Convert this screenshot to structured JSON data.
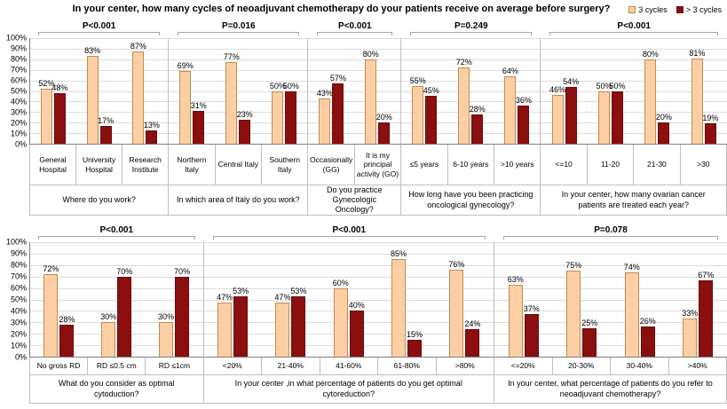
{
  "chart_data": {
    "type": "bar",
    "title": "In your center, how many cycles of neoadjuvant chemotherapy do your patients receive on average before surgery?",
    "ylim": [
      0,
      100
    ],
    "yticks": [
      0,
      10,
      20,
      30,
      40,
      50,
      60,
      70,
      80,
      90,
      100
    ],
    "legend_position": "top-right",
    "grid": true,
    "series": [
      {
        "name": "3 cycles",
        "fill": "#fbcfa3",
        "stroke": "#c28a52"
      },
      {
        "name": "> 3 cycles",
        "fill": "#8b0f0f",
        "stroke": "#6d0b0b"
      }
    ],
    "rows": [
      {
        "panels": [
          {
            "p_value": "P<0.001",
            "question": "Where do you work?",
            "categories": [
              "General Hospital",
              "University Hospital",
              "Research Institute"
            ],
            "values": [
              [
                52,
                83,
                87
              ],
              [
                48,
                17,
                13
              ]
            ]
          },
          {
            "p_value": "P=0.016",
            "question": "In which area of Italy do you work?",
            "categories": [
              "Northern Italy",
              "Central Italy",
              "Southern Italy"
            ],
            "values": [
              [
                69,
                77,
                50
              ],
              [
                31,
                23,
                50
              ]
            ]
          },
          {
            "p_value": "P<0.001",
            "question": "Do you practice Gynecologic Oncology?",
            "categories": [
              "Occasionally (GG)",
              "It is my principal activity (GO)"
            ],
            "values": [
              [
                43,
                80
              ],
              [
                57,
                20
              ]
            ]
          },
          {
            "p_value": "P=0.249",
            "question": "How long have you been practicing oncological gynecology?",
            "categories": [
              "≤5 years",
              "6-10 years",
              ">10 years"
            ],
            "values": [
              [
                55,
                72,
                64
              ],
              [
                45,
                28,
                36
              ]
            ]
          },
          {
            "p_value": "P<0.001",
            "question": "In your center, how many ovarian cancer patients are treated each year?",
            "categories": [
              "<=10",
              "11-20",
              "21-30",
              ">30"
            ],
            "values": [
              [
                46,
                50,
                80,
                81
              ],
              [
                54,
                50,
                20,
                19
              ]
            ]
          }
        ]
      },
      {
        "panels": [
          {
            "p_value": "P<0.001",
            "question": "What do you consider as optimal cytoduction?",
            "categories": [
              "No gross RD",
              "RD ≤0.5 cm",
              "RD ≤1cm"
            ],
            "values": [
              [
                72,
                30,
                30
              ],
              [
                28,
                70,
                70
              ]
            ]
          },
          {
            "p_value": "P<0.001",
            "question": "In your center ,in what percentage of patients do you get optimal cytoreduction?",
            "categories": [
              "<20%",
              "21-40%",
              "41-60%",
              "61-80%",
              ">80%"
            ],
            "values": [
              [
                47,
                47,
                60,
                85,
                76
              ],
              [
                53,
                53,
                40,
                15,
                24
              ]
            ]
          },
          {
            "p_value": "P=0.078",
            "question": "In your center, what percentage of patients do you refer to neoadjuvant chemotherapy?",
            "categories": [
              "<=20%",
              "20-30%",
              "30-40%",
              ">40%"
            ],
            "values": [
              [
                63,
                75,
                74,
                33
              ],
              [
                37,
                25,
                26,
                67
              ]
            ]
          }
        ]
      }
    ]
  }
}
